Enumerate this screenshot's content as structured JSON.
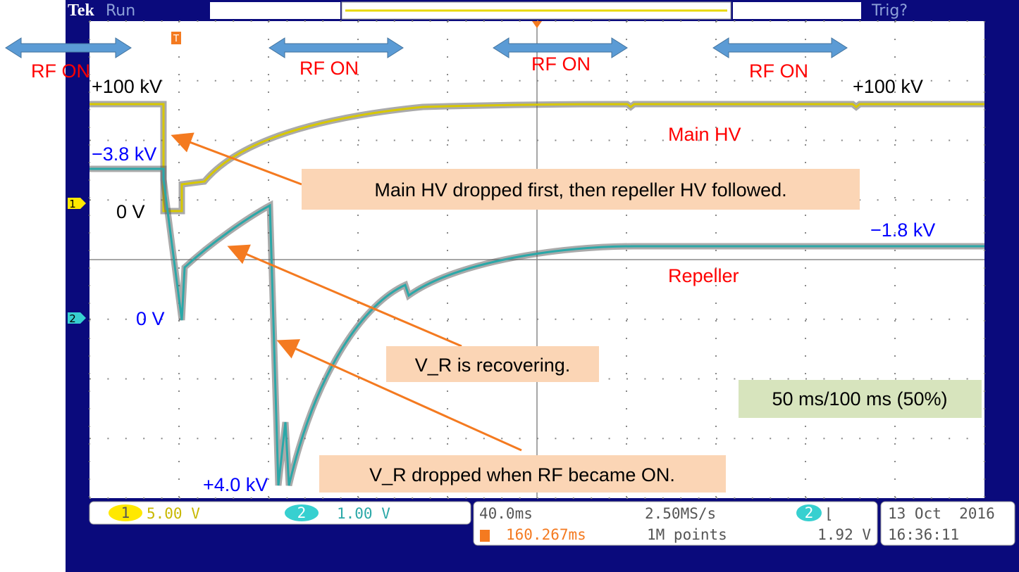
{
  "header": {
    "brand": "Tek",
    "status": "Run",
    "trigger_status": "Trig?"
  },
  "markers": {
    "trigger": "T",
    "channel_1": "1",
    "channel_2": "2"
  },
  "annotations": {
    "rf_on": [
      "RF ON",
      "RF ON",
      "RF ON",
      "RF ON"
    ],
    "main_hv_level_left": "+100 kV",
    "main_hv_level_right": "+100 kV",
    "main_hv_zero": "0 V",
    "repeller_level_left": "−3.8 kV",
    "repeller_zero": "0 V",
    "repeller_level_right": "−1.8 kV",
    "repeller_peak": "+4.0 kV",
    "main_hv_label": "Main HV",
    "repeller_label": "Repeller",
    "callouts": [
      "Main HV dropped first, then repeller HV followed.",
      "V_R is recovering.",
      "V_R dropped when RF became ON."
    ],
    "duty": "50 ms/100 ms (50%)"
  },
  "status": {
    "ch1_scale": "5.00 V",
    "ch2_scale": "1.00 V",
    "timebase": "40.0ms",
    "sample_rate": "2.50MS/s",
    "trigger_source": "2",
    "trigger_slope": "⌊",
    "trigger_position": "160.267ms",
    "record_length": "1M points",
    "trigger_level": "1.92 V",
    "date": "13 Oct  2016",
    "time": "16:36:11"
  }
}
